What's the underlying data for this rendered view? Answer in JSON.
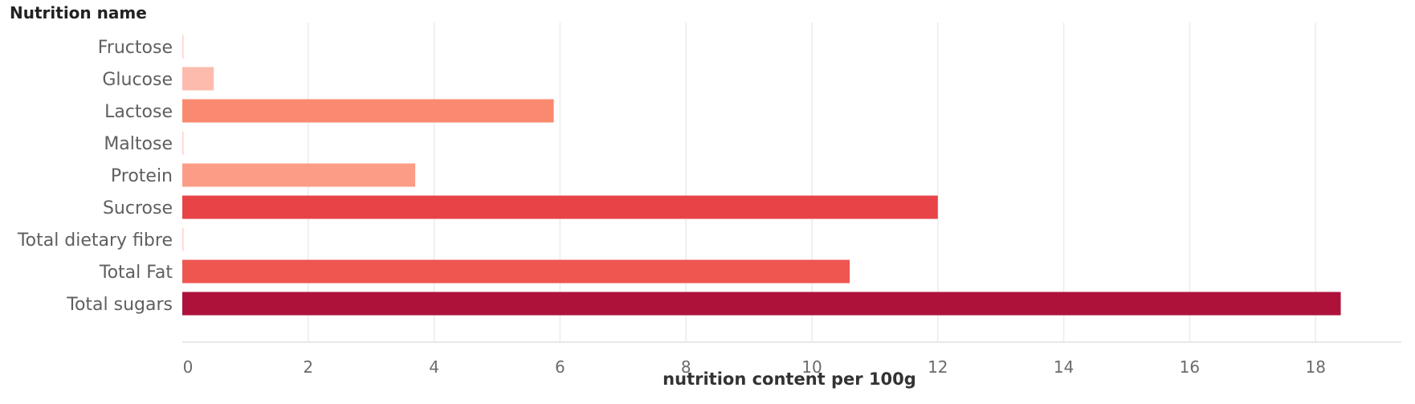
{
  "chart_data": {
    "type": "bar",
    "orientation": "horizontal",
    "y_header": "Nutrition name",
    "xlabel": "nutrition content per 100g",
    "categories": [
      "Fructose",
      "Glucose",
      "Lactose",
      "Maltose",
      "Protein",
      "Sucrose",
      "Total dietary fibre",
      "Total Fat",
      "Total sugars"
    ],
    "values": [
      0,
      0.5,
      5.9,
      0,
      3.7,
      12.0,
      0,
      10.6,
      18.4
    ],
    "colors": [
      "#fcd2c4",
      "#fcbbac",
      "#f98a70",
      "#fcd2c4",
      "#fb9d86",
      "#e84347",
      "#fcd2c4",
      "#ee5650",
      "#ae123a"
    ],
    "xlim": [
      0,
      19.6
    ],
    "xticks": [
      0,
      2,
      4,
      6,
      8,
      10,
      12,
      14,
      16,
      18
    ],
    "grid": true
  }
}
